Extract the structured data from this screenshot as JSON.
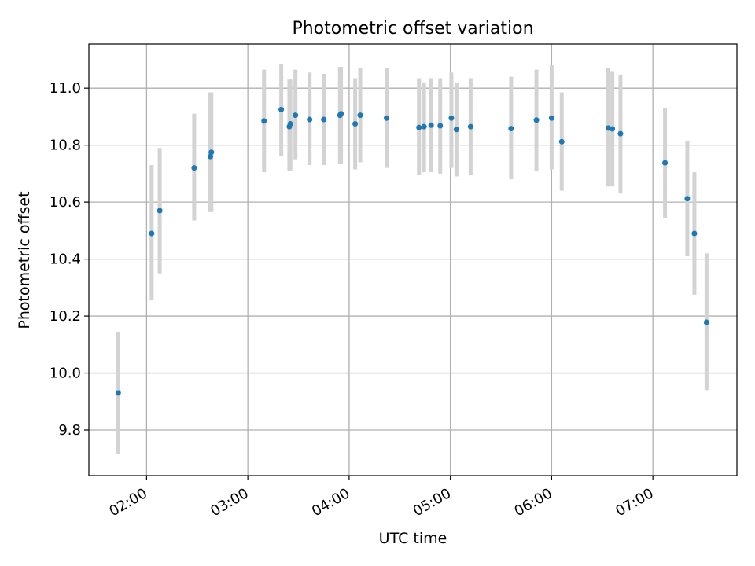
{
  "chart_data": {
    "type": "scatter",
    "title": "Photometric offset variation",
    "xlabel": "UTC time",
    "ylabel": "Photometric offset",
    "x_unit": "UTC hours",
    "xlim": [
      1.43,
      7.83
    ],
    "ylim": [
      9.64,
      11.155
    ],
    "grid": true,
    "x_ticks": [
      {
        "value": 2,
        "label": "02:00"
      },
      {
        "value": 3,
        "label": "03:00"
      },
      {
        "value": 4,
        "label": "04:00"
      },
      {
        "value": 5,
        "label": "05:00"
      },
      {
        "value": 6,
        "label": "06:00"
      },
      {
        "value": 7,
        "label": "07:00"
      }
    ],
    "y_ticks": [
      {
        "value": 9.8,
        "label": "9.8"
      },
      {
        "value": 10.0,
        "label": "10.0"
      },
      {
        "value": 10.2,
        "label": "10.2"
      },
      {
        "value": 10.4,
        "label": "10.4"
      },
      {
        "value": 10.6,
        "label": "10.6"
      },
      {
        "value": 10.8,
        "label": "10.8"
      },
      {
        "value": 11.0,
        "label": "11.0"
      }
    ],
    "colors": {
      "point": "#1f77b4",
      "errorbar": "#d3d3d3",
      "grid": "#b0b0b0"
    },
    "points": [
      {
        "x": 1.72,
        "y": 9.93,
        "yerr_low": 9.715,
        "yerr_high": 10.145
      },
      {
        "x": 2.05,
        "y": 10.49,
        "yerr_low": 10.255,
        "yerr_high": 10.73
      },
      {
        "x": 2.13,
        "y": 10.57,
        "yerr_low": 10.35,
        "yerr_high": 10.79
      },
      {
        "x": 2.47,
        "y": 10.72,
        "yerr_low": 10.535,
        "yerr_high": 10.91
      },
      {
        "x": 2.63,
        "y": 10.76,
        "yerr_low": 10.565,
        "yerr_high": 10.985
      },
      {
        "x": 2.64,
        "y": 10.775,
        "yerr_low": 10.565,
        "yerr_high": 10.985
      },
      {
        "x": 3.16,
        "y": 10.885,
        "yerr_low": 10.705,
        "yerr_high": 11.065
      },
      {
        "x": 3.33,
        "y": 10.925,
        "yerr_low": 10.76,
        "yerr_high": 11.085
      },
      {
        "x": 3.41,
        "y": 10.865,
        "yerr_low": 10.71,
        "yerr_high": 11.03
      },
      {
        "x": 3.42,
        "y": 10.875,
        "yerr_low": 10.71,
        "yerr_high": 11.03
      },
      {
        "x": 3.47,
        "y": 10.905,
        "yerr_low": 10.75,
        "yerr_high": 11.065
      },
      {
        "x": 3.61,
        "y": 10.89,
        "yerr_low": 10.73,
        "yerr_high": 11.055
      },
      {
        "x": 3.75,
        "y": 10.89,
        "yerr_low": 10.73,
        "yerr_high": 11.05
      },
      {
        "x": 3.91,
        "y": 10.905,
        "yerr_low": 10.735,
        "yerr_high": 11.075
      },
      {
        "x": 3.92,
        "y": 10.91,
        "yerr_low": 10.735,
        "yerr_high": 11.075
      },
      {
        "x": 4.06,
        "y": 10.875,
        "yerr_low": 10.715,
        "yerr_high": 11.035
      },
      {
        "x": 4.11,
        "y": 10.905,
        "yerr_low": 10.74,
        "yerr_high": 11.07
      },
      {
        "x": 4.37,
        "y": 10.895,
        "yerr_low": 10.72,
        "yerr_high": 11.07
      },
      {
        "x": 4.69,
        "y": 10.862,
        "yerr_low": 10.695,
        "yerr_high": 11.035
      },
      {
        "x": 4.74,
        "y": 10.865,
        "yerr_low": 10.705,
        "yerr_high": 11.02
      },
      {
        "x": 4.81,
        "y": 10.87,
        "yerr_low": 10.705,
        "yerr_high": 11.035
      },
      {
        "x": 4.9,
        "y": 10.868,
        "yerr_low": 10.7,
        "yerr_high": 11.035
      },
      {
        "x": 5.01,
        "y": 10.895,
        "yerr_low": 10.72,
        "yerr_high": 11.055
      },
      {
        "x": 5.06,
        "y": 10.855,
        "yerr_low": 10.69,
        "yerr_high": 11.02
      },
      {
        "x": 5.2,
        "y": 10.865,
        "yerr_low": 10.695,
        "yerr_high": 11.035
      },
      {
        "x": 5.6,
        "y": 10.858,
        "yerr_low": 10.68,
        "yerr_high": 11.04
      },
      {
        "x": 5.85,
        "y": 10.888,
        "yerr_low": 10.71,
        "yerr_high": 11.065
      },
      {
        "x": 6.0,
        "y": 10.895,
        "yerr_low": 10.715,
        "yerr_high": 11.08
      },
      {
        "x": 6.1,
        "y": 10.812,
        "yerr_low": 10.64,
        "yerr_high": 10.985
      },
      {
        "x": 6.56,
        "y": 10.86,
        "yerr_low": 10.655,
        "yerr_high": 11.07
      },
      {
        "x": 6.6,
        "y": 10.857,
        "yerr_low": 10.655,
        "yerr_high": 11.06
      },
      {
        "x": 6.68,
        "y": 10.84,
        "yerr_low": 10.63,
        "yerr_high": 11.045
      },
      {
        "x": 7.12,
        "y": 10.738,
        "yerr_low": 10.545,
        "yerr_high": 10.93
      },
      {
        "x": 7.34,
        "y": 10.612,
        "yerr_low": 10.41,
        "yerr_high": 10.815
      },
      {
        "x": 7.41,
        "y": 10.49,
        "yerr_low": 10.275,
        "yerr_high": 10.705
      },
      {
        "x": 7.53,
        "y": 10.178,
        "yerr_low": 9.94,
        "yerr_high": 10.42
      }
    ]
  }
}
